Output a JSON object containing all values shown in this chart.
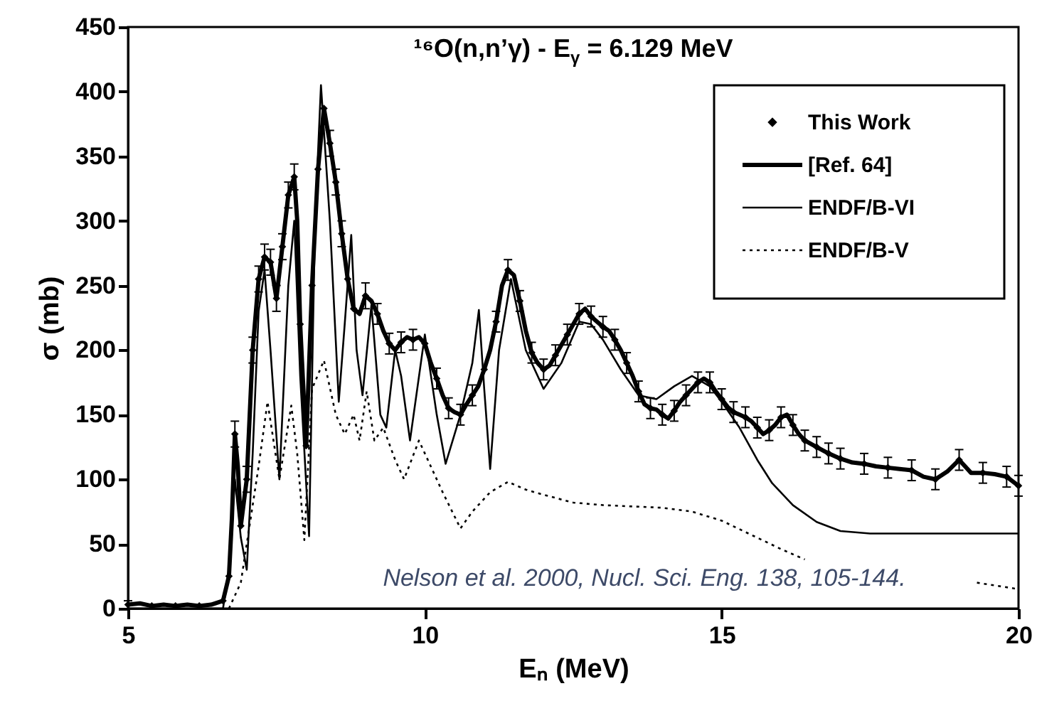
{
  "chart_data": {
    "type": "line",
    "title": "¹⁶O(n,n’γ) - E$_{γ}$ = 6.129 MeV",
    "xlabel": "Eₙ (MeV)",
    "ylabel": "σ (mb)",
    "xlim": [
      5,
      20
    ],
    "xticks": [
      5,
      10,
      15,
      20
    ],
    "ylim": [
      0,
      450
    ],
    "yticks": [
      0,
      50,
      100,
      150,
      200,
      250,
      300,
      350,
      400,
      450
    ],
    "grid": false,
    "legend": "top right",
    "annotations": [
      "Nelson et al. 2000, Nucl. Sci. Eng. 138, 105-144."
    ],
    "series": [
      {
        "name": "This Work",
        "type": "scatter",
        "marker": "diamond",
        "color": "#000000",
        "x": [
          5.0,
          5.4,
          5.8,
          6.2,
          6.6,
          6.7,
          6.8,
          6.9,
          7.0,
          7.1,
          7.2,
          7.3,
          7.4,
          7.5,
          7.6,
          7.7,
          7.8,
          7.9,
          8.0,
          8.1,
          8.2,
          8.3,
          8.4,
          8.5,
          8.6,
          8.7,
          8.8,
          9.0,
          9.2,
          9.4,
          9.6,
          9.8,
          10.0,
          10.2,
          10.4,
          10.6,
          10.8,
          11.0,
          11.2,
          11.4,
          11.6,
          11.8,
          12.0,
          12.2,
          12.4,
          12.6,
          12.8,
          13.0,
          13.2,
          13.4,
          13.6,
          13.8,
          14.0,
          14.2,
          14.4,
          14.6,
          14.8,
          15.0,
          15.2,
          15.4,
          15.6,
          15.8,
          16.0,
          16.2,
          16.4,
          16.6,
          16.8,
          17.0,
          17.4,
          17.8,
          18.2,
          18.6,
          19.0,
          19.4,
          19.8,
          20.0
        ],
        "values": [
          3,
          2,
          2,
          2,
          6,
          25,
          135,
          64,
          100,
          200,
          255,
          272,
          268,
          240,
          280,
          320,
          334,
          220,
          126,
          250,
          340,
          387,
          360,
          330,
          290,
          255,
          232,
          242,
          228,
          205,
          206,
          208,
          205,
          178,
          155,
          150,
          165,
          185,
          222,
          262,
          238,
          198,
          185,
          196,
          212,
          228,
          226,
          218,
          208,
          190,
          168,
          155,
          150,
          153,
          165,
          175,
          175,
          162,
          152,
          148,
          140,
          138,
          148,
          142,
          130,
          125,
          120,
          116,
          112,
          109,
          107,
          100,
          115,
          105,
          102,
          95
        ],
        "errors": [
          3,
          null,
          null,
          null,
          null,
          null,
          10,
          null,
          10,
          10,
          10,
          10,
          10,
          10,
          10,
          10,
          10,
          null,
          null,
          null,
          null,
          null,
          10,
          10,
          10,
          null,
          null,
          10,
          8,
          8,
          8,
          8,
          null,
          8,
          8,
          8,
          8,
          null,
          8,
          8,
          8,
          8,
          8,
          8,
          8,
          8,
          8,
          8,
          8,
          8,
          8,
          8,
          8,
          8,
          8,
          8,
          8,
          8,
          8,
          8,
          8,
          8,
          8,
          8,
          8,
          8,
          8,
          8,
          8,
          8,
          8,
          8,
          8,
          8,
          8,
          8
        ]
      },
      {
        "name": "[Ref. 64]",
        "type": "line",
        "line_style": "solid",
        "color": "#000000",
        "x": [
          5.0,
          5.2,
          5.4,
          5.6,
          5.8,
          6.0,
          6.2,
          6.4,
          6.6,
          6.7,
          6.75,
          6.8,
          6.85,
          6.9,
          7.0,
          7.1,
          7.2,
          7.3,
          7.4,
          7.5,
          7.6,
          7.7,
          7.8,
          7.85,
          7.9,
          8.0,
          8.1,
          8.2,
          8.3,
          8.4,
          8.5,
          8.6,
          8.7,
          8.8,
          8.9,
          9.0,
          9.1,
          9.2,
          9.3,
          9.4,
          9.5,
          9.6,
          9.7,
          9.8,
          9.9,
          10.0,
          10.1,
          10.2,
          10.3,
          10.4,
          10.5,
          10.6,
          10.7,
          10.8,
          10.9,
          11.0,
          11.1,
          11.2,
          11.3,
          11.4,
          11.5,
          11.6,
          11.7,
          11.8,
          11.9,
          12.0,
          12.1,
          12.2,
          12.4,
          12.6,
          12.7,
          12.8,
          12.9,
          13.0,
          13.1,
          13.2,
          13.3,
          13.4,
          13.5,
          13.6,
          13.7,
          13.8,
          13.9,
          14.0,
          14.1,
          14.2,
          14.3,
          14.4,
          14.5,
          14.6,
          14.7,
          14.8,
          14.9,
          15.0,
          15.1,
          15.2,
          15.3,
          15.4,
          15.5,
          15.6,
          15.7,
          15.8,
          15.9,
          16.0,
          16.1,
          16.2,
          16.3,
          16.4,
          16.6,
          16.8,
          17.0,
          17.2,
          17.4,
          17.6,
          17.8,
          18.0,
          18.2,
          18.4,
          18.6,
          18.8,
          19.0,
          19.1,
          19.2,
          19.4,
          19.6,
          19.8,
          20.0
        ],
        "values": [
          3,
          4,
          2,
          3,
          2,
          3,
          2,
          3,
          6,
          25,
          70,
          135,
          110,
          64,
          100,
          200,
          255,
          272,
          268,
          240,
          280,
          320,
          334,
          300,
          220,
          126,
          250,
          340,
          387,
          360,
          330,
          290,
          255,
          232,
          228,
          242,
          238,
          228,
          215,
          205,
          200,
          206,
          210,
          208,
          210,
          205,
          190,
          178,
          165,
          155,
          152,
          150,
          158,
          165,
          172,
          185,
          200,
          222,
          250,
          262,
          258,
          238,
          215,
          198,
          190,
          185,
          188,
          196,
          212,
          228,
          232,
          226,
          222,
          218,
          215,
          208,
          200,
          190,
          180,
          168,
          158,
          155,
          154,
          150,
          147,
          153,
          160,
          165,
          170,
          175,
          178,
          175,
          168,
          162,
          156,
          152,
          150,
          148,
          145,
          140,
          135,
          138,
          142,
          148,
          150,
          142,
          135,
          130,
          125,
          120,
          116,
          113,
          112,
          110,
          109,
          108,
          107,
          102,
          100,
          106,
          115,
          110,
          105,
          105,
          104,
          102,
          95
        ]
      },
      {
        "name": "ENDF/B-VI",
        "type": "line",
        "line_style": "solid",
        "color": "#000000",
        "x": [
          5.0,
          6.6,
          6.7,
          6.8,
          6.9,
          7.0,
          7.1,
          7.2,
          7.3,
          7.4,
          7.55,
          7.7,
          7.8,
          7.9,
          8.05,
          8.15,
          8.25,
          8.4,
          8.55,
          8.65,
          8.76,
          8.85,
          8.95,
          9.1,
          9.25,
          9.35,
          9.5,
          9.6,
          9.75,
          10.0,
          10.2,
          10.35,
          10.6,
          10.8,
          10.91,
          11.0,
          11.1,
          11.25,
          11.45,
          11.7,
          12.0,
          12.3,
          12.6,
          12.8,
          13.0,
          13.3,
          13.6,
          13.9,
          14.2,
          14.5,
          14.8,
          15.0,
          15.3,
          15.6,
          15.85,
          16.2,
          16.6,
          17.0,
          17.5,
          18.5,
          20.0
        ],
        "values": [
          0,
          0,
          30,
          100,
          55,
          30,
          120,
          230,
          262,
          200,
          100,
          250,
          300,
          180,
          56,
          300,
          405,
          300,
          160,
          220,
          289,
          200,
          165,
          235,
          150,
          140,
          200,
          180,
          130,
          212,
          150,
          112,
          150,
          190,
          231,
          170,
          108,
          200,
          255,
          200,
          170,
          190,
          222,
          220,
          208,
          185,
          165,
          162,
          172,
          180,
          172,
          160,
          140,
          115,
          97,
          80,
          67,
          60,
          58,
          58,
          58
        ]
      },
      {
        "name": "ENDF/B-V",
        "type": "line",
        "line_style": "dotted",
        "color": "#000000",
        "x": [
          6.7,
          6.9,
          7.0,
          7.2,
          7.35,
          7.45,
          7.55,
          7.75,
          7.85,
          7.97,
          8.1,
          8.3,
          8.5,
          8.65,
          8.8,
          8.9,
          9.02,
          9.15,
          9.3,
          9.5,
          9.65,
          9.9,
          10.1,
          10.3,
          10.6,
          10.8,
          11.1,
          11.4,
          11.7,
          12.0,
          12.5,
          13.0,
          13.5,
          14.0,
          14.5,
          15.0,
          15.5,
          16.0,
          16.4,
          17.0,
          19.3,
          20.0
        ],
        "values": [
          0,
          20,
          50,
          110,
          160,
          130,
          100,
          157,
          120,
          53,
          170,
          192,
          150,
          135,
          150,
          130,
          168,
          130,
          140,
          115,
          100,
          130,
          110,
          90,
          62,
          75,
          90,
          98,
          92,
          88,
          82,
          80,
          79,
          78,
          75,
          68,
          57,
          46,
          38,
          null,
          20,
          15
        ]
      }
    ]
  }
}
